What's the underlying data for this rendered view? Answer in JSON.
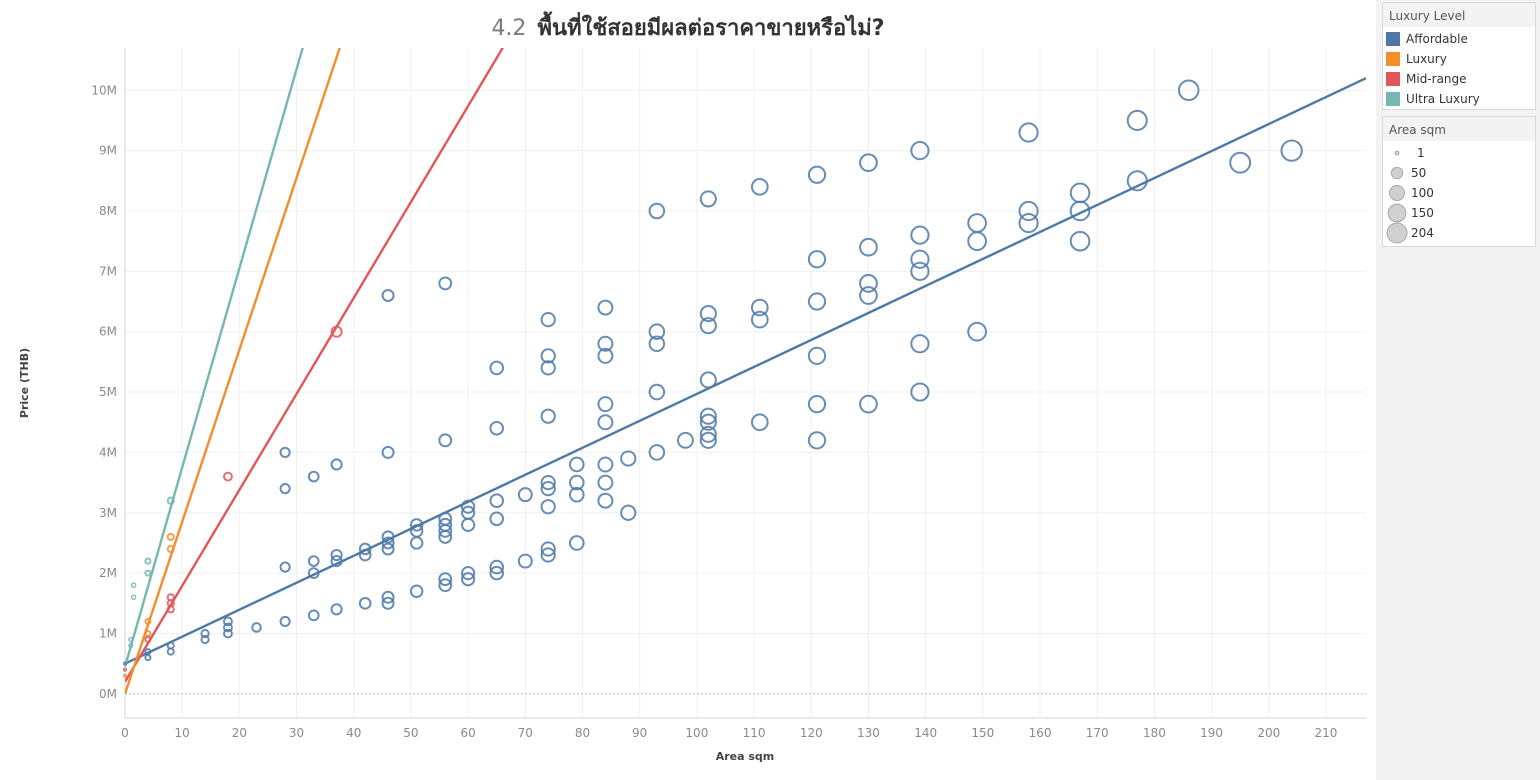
{
  "chart_data": {
    "type": "scatter",
    "title_prefix": "4.2",
    "title": "พื้นที่ใช้สอยมีผลต่อราคาขายหรือไม่?",
    "xlabel": "Area sqm",
    "ylabel": "Price (THB)",
    "xlim": [
      0,
      217
    ],
    "ylim": [
      -0.4,
      10.7
    ],
    "x_ticks": [
      0,
      10,
      20,
      30,
      40,
      50,
      60,
      70,
      80,
      90,
      100,
      110,
      120,
      130,
      140,
      150,
      160,
      170,
      180,
      190,
      200,
      210
    ],
    "y_ticks": [
      {
        "value": 0,
        "label": "0M"
      },
      {
        "value": 1,
        "label": "1M"
      },
      {
        "value": 2,
        "label": "2M"
      },
      {
        "value": 3,
        "label": "3M"
      },
      {
        "value": 4,
        "label": "4M"
      },
      {
        "value": 5,
        "label": "5M"
      },
      {
        "value": 6,
        "label": "6M"
      },
      {
        "value": 7,
        "label": "7M"
      },
      {
        "value": 8,
        "label": "8M"
      },
      {
        "value": 9,
        "label": "9M"
      },
      {
        "value": 10,
        "label": "10M"
      }
    ],
    "grid": true,
    "legend_color": {
      "title": "Luxury Level",
      "items": [
        {
          "name": "Affordable",
          "color": "#4e79a7"
        },
        {
          "name": "Luxury",
          "color": "#f28e2b"
        },
        {
          "name": "Mid-range",
          "color": "#e15759"
        },
        {
          "name": "Ultra Luxury",
          "color": "#76b7b2"
        }
      ]
    },
    "legend_size": {
      "title": "Area sqm",
      "items": [
        {
          "label": "1",
          "value": 1
        },
        {
          "label": "50",
          "value": 50
        },
        {
          "label": "100",
          "value": 100
        },
        {
          "label": "150",
          "value": 150
        },
        {
          "label": "204",
          "value": 204
        }
      ]
    },
    "trend_lines": [
      {
        "series": "Affordable",
        "color": "#4e79a7",
        "intercept": 0.5,
        "slope": 0.0447
      },
      {
        "series": "Mid-range",
        "color": "#e15759",
        "intercept": 0.2,
        "slope": 0.159
      },
      {
        "series": "Luxury",
        "color": "#f28e2b",
        "intercept": 0.0,
        "slope": 0.285
      },
      {
        "series": "Ultra Luxury",
        "color": "#76b7b2",
        "intercept": 0.45,
        "slope": 0.33
      }
    ],
    "series": [
      {
        "name": "Ultra Luxury",
        "color": "#76b7b2",
        "points": [
          [
            1,
            0.8
          ],
          [
            1,
            0.9
          ],
          [
            1.5,
            1.6
          ],
          [
            1.5,
            1.8
          ],
          [
            4,
            2.0
          ],
          [
            4,
            2.2
          ],
          [
            8,
            3.2
          ]
        ]
      },
      {
        "name": "Luxury",
        "color": "#f28e2b",
        "points": [
          [
            0,
            0.3
          ],
          [
            4,
            1.0
          ],
          [
            4,
            1.2
          ],
          [
            8,
            2.4
          ],
          [
            8,
            2.6
          ]
        ]
      },
      {
        "name": "Mid-range",
        "color": "#e15759",
        "points": [
          [
            0,
            0.4
          ],
          [
            4,
            0.9
          ],
          [
            8,
            1.4
          ],
          [
            8,
            1.5
          ],
          [
            8,
            1.6
          ],
          [
            18,
            3.6
          ],
          [
            37,
            6.0
          ]
        ]
      },
      {
        "name": "Affordable",
        "color": "#4e79a7",
        "points": [
          [
            0,
            0.5
          ],
          [
            4,
            0.6
          ],
          [
            4,
            0.7
          ],
          [
            8,
            0.7
          ],
          [
            8,
            0.8
          ],
          [
            14,
            0.9
          ],
          [
            14,
            1.0
          ],
          [
            18,
            1.0
          ],
          [
            18,
            1.1
          ],
          [
            18,
            1.2
          ],
          [
            23,
            1.1
          ],
          [
            28,
            1.2
          ],
          [
            28,
            2.1
          ],
          [
            28,
            3.4
          ],
          [
            28,
            4.0
          ],
          [
            33,
            1.3
          ],
          [
            33,
            2.0
          ],
          [
            33,
            2.2
          ],
          [
            33,
            3.6
          ],
          [
            37,
            1.4
          ],
          [
            37,
            2.2
          ],
          [
            37,
            2.3
          ],
          [
            37,
            3.8
          ],
          [
            42,
            1.5
          ],
          [
            42,
            2.3
          ],
          [
            42,
            2.4
          ],
          [
            46,
            1.5
          ],
          [
            46,
            1.6
          ],
          [
            46,
            2.4
          ],
          [
            46,
            2.5
          ],
          [
            46,
            2.6
          ],
          [
            46,
            4.0
          ],
          [
            46,
            6.6
          ],
          [
            51,
            1.7
          ],
          [
            51,
            2.5
          ],
          [
            51,
            2.7
          ],
          [
            51,
            2.8
          ],
          [
            56,
            1.8
          ],
          [
            56,
            1.9
          ],
          [
            56,
            2.6
          ],
          [
            56,
            2.7
          ],
          [
            56,
            2.8
          ],
          [
            56,
            2.9
          ],
          [
            56,
            4.2
          ],
          [
            56,
            6.8
          ],
          [
            60,
            1.9
          ],
          [
            60,
            2.0
          ],
          [
            60,
            2.8
          ],
          [
            60,
            3.0
          ],
          [
            60,
            3.1
          ],
          [
            65,
            2.0
          ],
          [
            65,
            2.1
          ],
          [
            65,
            2.9
          ],
          [
            65,
            3.2
          ],
          [
            65,
            4.4
          ],
          [
            65,
            5.4
          ],
          [
            70,
            2.2
          ],
          [
            70,
            3.3
          ],
          [
            74,
            2.3
          ],
          [
            74,
            2.4
          ],
          [
            74,
            3.1
          ],
          [
            74,
            3.4
          ],
          [
            74,
            3.5
          ],
          [
            74,
            4.6
          ],
          [
            74,
            5.4
          ],
          [
            74,
            5.6
          ],
          [
            74,
            6.2
          ],
          [
            79,
            2.5
          ],
          [
            79,
            3.3
          ],
          [
            79,
            3.5
          ],
          [
            79,
            3.8
          ],
          [
            84,
            3.2
          ],
          [
            84,
            3.5
          ],
          [
            84,
            3.8
          ],
          [
            84,
            4.5
          ],
          [
            84,
            4.8
          ],
          [
            84,
            5.6
          ],
          [
            84,
            5.8
          ],
          [
            84,
            6.4
          ],
          [
            88,
            3.0
          ],
          [
            88,
            3.9
          ],
          [
            93,
            4.0
          ],
          [
            93,
            5.0
          ],
          [
            93,
            5.8
          ],
          [
            93,
            6.0
          ],
          [
            93,
            8.0
          ],
          [
            98,
            4.2
          ],
          [
            102,
            4.2
          ],
          [
            102,
            4.3
          ],
          [
            102,
            4.5
          ],
          [
            102,
            4.6
          ],
          [
            102,
            5.2
          ],
          [
            102,
            6.1
          ],
          [
            102,
            6.3
          ],
          [
            102,
            8.2
          ],
          [
            111,
            4.5
          ],
          [
            111,
            6.2
          ],
          [
            111,
            6.4
          ],
          [
            111,
            8.4
          ],
          [
            121,
            4.2
          ],
          [
            121,
            4.8
          ],
          [
            121,
            5.6
          ],
          [
            121,
            6.5
          ],
          [
            121,
            7.2
          ],
          [
            121,
            8.6
          ],
          [
            130,
            4.8
          ],
          [
            130,
            6.6
          ],
          [
            130,
            6.8
          ],
          [
            130,
            7.4
          ],
          [
            130,
            8.8
          ],
          [
            139,
            5.0
          ],
          [
            139,
            5.8
          ],
          [
            139,
            7.0
          ],
          [
            139,
            7.2
          ],
          [
            139,
            7.6
          ],
          [
            139,
            9.0
          ],
          [
            149,
            6.0
          ],
          [
            149,
            7.5
          ],
          [
            149,
            7.8
          ],
          [
            158,
            7.8
          ],
          [
            158,
            8.0
          ],
          [
            158,
            9.3
          ],
          [
            167,
            7.5
          ],
          [
            167,
            8.0
          ],
          [
            167,
            8.3
          ],
          [
            177,
            8.5
          ],
          [
            177,
            9.5
          ],
          [
            186,
            10.0
          ],
          [
            195,
            8.8
          ],
          [
            204,
            9.0
          ]
        ]
      }
    ]
  }
}
